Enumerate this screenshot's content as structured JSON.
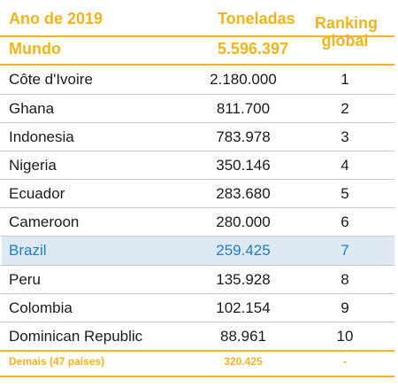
{
  "header": {
    "year_label": "Ano de 2019",
    "tons_label": "Toneladas",
    "ranking_line1": "Ranking",
    "ranking_line2": "global",
    "world_label": "Mundo",
    "world_value": "5.596.397"
  },
  "rows": [
    {
      "country": "Côte d'Ivoire",
      "tons": "2.180.000",
      "rank": "1"
    },
    {
      "country": "Ghana",
      "tons": "811.700",
      "rank": "2"
    },
    {
      "country": "Indonesia",
      "tons": "783.978",
      "rank": "3"
    },
    {
      "country": "Nigeria",
      "tons": "350.146",
      "rank": "4"
    },
    {
      "country": "Ecuador",
      "tons": "283.680",
      "rank": "5"
    },
    {
      "country": "Cameroon",
      "tons": "280.000",
      "rank": "6"
    },
    {
      "country": "Brazil",
      "tons": "259.425",
      "rank": "7"
    },
    {
      "country": "Peru",
      "tons": "135.928",
      "rank": "8"
    },
    {
      "country": "Colombia",
      "tons": "102.154",
      "rank": "9"
    },
    {
      "country": "Dominican Republic",
      "tons": "88.961",
      "rank": "10"
    }
  ],
  "footer": {
    "label": "Demais (47 países)",
    "tons": "320.425",
    "rank": "-"
  },
  "colors": {
    "accent_gold": "#f0b41c",
    "highlight_bg": "#dfe9f3",
    "highlight_text": "#1e7fc1"
  }
}
